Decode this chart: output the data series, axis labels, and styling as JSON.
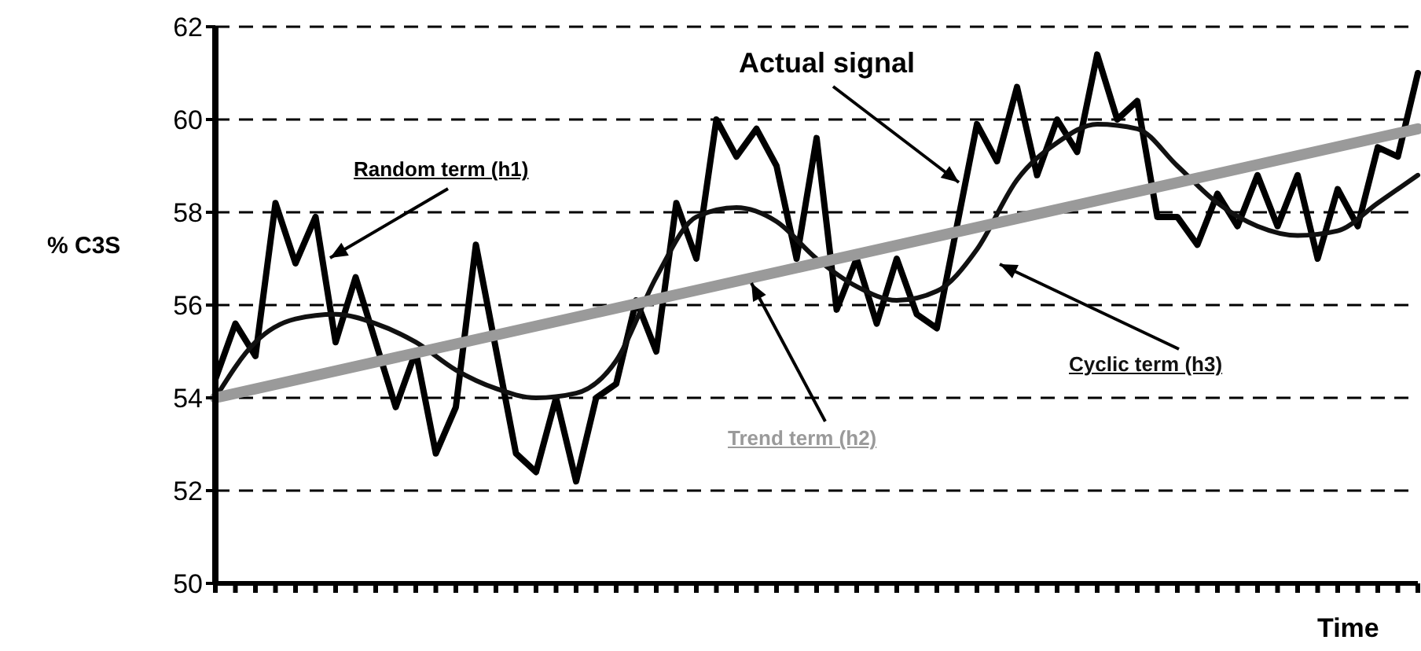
{
  "chart_data": {
    "type": "line",
    "xlabel": "Time",
    "ylabel": "% C3S",
    "categories": [
      null,
      null,
      null,
      null,
      null,
      null,
      null,
      null,
      null,
      null,
      null,
      null,
      null,
      null,
      null,
      null,
      null,
      null,
      null,
      null,
      null,
      null,
      null,
      null,
      null,
      null,
      null,
      null,
      null,
      null,
      null,
      null,
      null,
      null,
      null,
      null,
      null,
      null,
      null,
      null,
      null,
      null,
      null,
      null,
      null,
      null,
      null,
      null,
      null,
      null,
      null,
      null,
      null,
      null,
      null,
      null,
      null,
      null,
      null,
      null,
      null
    ],
    "series": [
      {
        "name": "Actual signal",
        "color": "#000000",
        "values": [
          54.4,
          55.6,
          54.9,
          58.2,
          56.9,
          57.9,
          55.2,
          56.6,
          null,
          53.8,
          55.0,
          52.8,
          53.8,
          57.3,
          null,
          52.8,
          52.4,
          54.0,
          52.2,
          54.0,
          54.3,
          56.1,
          55.0,
          58.2,
          57.0,
          60.0,
          59.2,
          59.8,
          59.0,
          57.0,
          59.6,
          55.9,
          57.0,
          55.6,
          57.0,
          55.8,
          55.5,
          null,
          59.9,
          59.1,
          60.7,
          58.8,
          60.0,
          59.3,
          61.4,
          60.0,
          60.4,
          57.9,
          57.9,
          57.3,
          58.4,
          57.7,
          58.8,
          57.7,
          58.8,
          57.0,
          58.5,
          57.7,
          59.4,
          59.2,
          61.0
        ]
      },
      {
        "name": "Cyclic term (h3)",
        "color": "#111111",
        "values": [
          54.0,
          null,
          55.2,
          null,
          55.7,
          null,
          55.8,
          null,
          55.6,
          null,
          55.2,
          null,
          54.6,
          null,
          54.2,
          null,
          54.0,
          null,
          54.1,
          null,
          54.8,
          null,
          56.6,
          null,
          57.9,
          null,
          58.1,
          null,
          57.8,
          null,
          57.0,
          null,
          56.4,
          null,
          56.1,
          null,
          56.3,
          null,
          57.2,
          null,
          58.7,
          null,
          59.5,
          null,
          59.9,
          null,
          59.8,
          null,
          59.0,
          null,
          58.2,
          null,
          57.7,
          null,
          57.5,
          null,
          57.6,
          null,
          58.2,
          null,
          58.8
        ]
      },
      {
        "name": "Trend term (h2)",
        "color": "#9a9a9a",
        "values": [
          54.0,
          null,
          null,
          null,
          null,
          null,
          null,
          null,
          null,
          null,
          null,
          null,
          null,
          null,
          null,
          null,
          null,
          null,
          null,
          null,
          null,
          null,
          null,
          null,
          null,
          null,
          null,
          null,
          null,
          null,
          null,
          null,
          null,
          null,
          null,
          null,
          null,
          null,
          null,
          null,
          null,
          null,
          null,
          null,
          null,
          null,
          null,
          null,
          null,
          null,
          null,
          null,
          null,
          null,
          null,
          null,
          null,
          null,
          null,
          null,
          59.8
        ]
      }
    ],
    "annotations": [
      "Random term (h1)"
    ],
    "ylim": [
      50,
      62
    ],
    "yticks": [
      50,
      52,
      54,
      56,
      58,
      60,
      62
    ],
    "grid": "y",
    "line_style": "solid",
    "marker": "none",
    "tick_labels": "y"
  }
}
